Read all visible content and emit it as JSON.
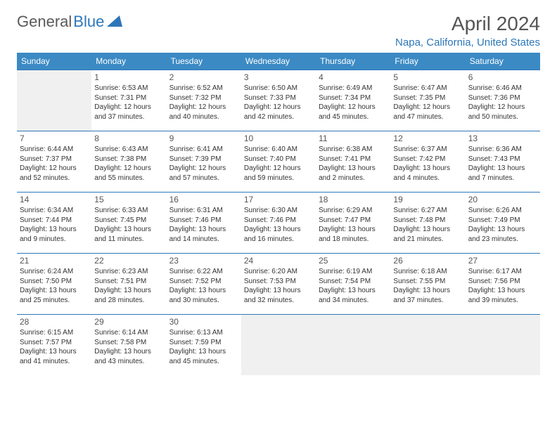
{
  "logo": {
    "text1": "General",
    "text2": "Blue"
  },
  "title": "April 2024",
  "location": "Napa, California, United States",
  "days_of_week": [
    "Sunday",
    "Monday",
    "Tuesday",
    "Wednesday",
    "Thursday",
    "Friday",
    "Saturday"
  ],
  "colors": {
    "header_bg": "#3b8ac4",
    "accent": "#2d77b8",
    "text": "#333333",
    "blank_bg": "#f0f0f0"
  },
  "weeks": [
    [
      {
        "blank": true
      },
      {
        "day": "1",
        "sunrise": "Sunrise: 6:53 AM",
        "sunset": "Sunset: 7:31 PM",
        "dl1": "Daylight: 12 hours",
        "dl2": "and 37 minutes."
      },
      {
        "day": "2",
        "sunrise": "Sunrise: 6:52 AM",
        "sunset": "Sunset: 7:32 PM",
        "dl1": "Daylight: 12 hours",
        "dl2": "and 40 minutes."
      },
      {
        "day": "3",
        "sunrise": "Sunrise: 6:50 AM",
        "sunset": "Sunset: 7:33 PM",
        "dl1": "Daylight: 12 hours",
        "dl2": "and 42 minutes."
      },
      {
        "day": "4",
        "sunrise": "Sunrise: 6:49 AM",
        "sunset": "Sunset: 7:34 PM",
        "dl1": "Daylight: 12 hours",
        "dl2": "and 45 minutes."
      },
      {
        "day": "5",
        "sunrise": "Sunrise: 6:47 AM",
        "sunset": "Sunset: 7:35 PM",
        "dl1": "Daylight: 12 hours",
        "dl2": "and 47 minutes."
      },
      {
        "day": "6",
        "sunrise": "Sunrise: 6:46 AM",
        "sunset": "Sunset: 7:36 PM",
        "dl1": "Daylight: 12 hours",
        "dl2": "and 50 minutes."
      }
    ],
    [
      {
        "day": "7",
        "sunrise": "Sunrise: 6:44 AM",
        "sunset": "Sunset: 7:37 PM",
        "dl1": "Daylight: 12 hours",
        "dl2": "and 52 minutes."
      },
      {
        "day": "8",
        "sunrise": "Sunrise: 6:43 AM",
        "sunset": "Sunset: 7:38 PM",
        "dl1": "Daylight: 12 hours",
        "dl2": "and 55 minutes."
      },
      {
        "day": "9",
        "sunrise": "Sunrise: 6:41 AM",
        "sunset": "Sunset: 7:39 PM",
        "dl1": "Daylight: 12 hours",
        "dl2": "and 57 minutes."
      },
      {
        "day": "10",
        "sunrise": "Sunrise: 6:40 AM",
        "sunset": "Sunset: 7:40 PM",
        "dl1": "Daylight: 12 hours",
        "dl2": "and 59 minutes."
      },
      {
        "day": "11",
        "sunrise": "Sunrise: 6:38 AM",
        "sunset": "Sunset: 7:41 PM",
        "dl1": "Daylight: 13 hours",
        "dl2": "and 2 minutes."
      },
      {
        "day": "12",
        "sunrise": "Sunrise: 6:37 AM",
        "sunset": "Sunset: 7:42 PM",
        "dl1": "Daylight: 13 hours",
        "dl2": "and 4 minutes."
      },
      {
        "day": "13",
        "sunrise": "Sunrise: 6:36 AM",
        "sunset": "Sunset: 7:43 PM",
        "dl1": "Daylight: 13 hours",
        "dl2": "and 7 minutes."
      }
    ],
    [
      {
        "day": "14",
        "sunrise": "Sunrise: 6:34 AM",
        "sunset": "Sunset: 7:44 PM",
        "dl1": "Daylight: 13 hours",
        "dl2": "and 9 minutes."
      },
      {
        "day": "15",
        "sunrise": "Sunrise: 6:33 AM",
        "sunset": "Sunset: 7:45 PM",
        "dl1": "Daylight: 13 hours",
        "dl2": "and 11 minutes."
      },
      {
        "day": "16",
        "sunrise": "Sunrise: 6:31 AM",
        "sunset": "Sunset: 7:46 PM",
        "dl1": "Daylight: 13 hours",
        "dl2": "and 14 minutes."
      },
      {
        "day": "17",
        "sunrise": "Sunrise: 6:30 AM",
        "sunset": "Sunset: 7:46 PM",
        "dl1": "Daylight: 13 hours",
        "dl2": "and 16 minutes."
      },
      {
        "day": "18",
        "sunrise": "Sunrise: 6:29 AM",
        "sunset": "Sunset: 7:47 PM",
        "dl1": "Daylight: 13 hours",
        "dl2": "and 18 minutes."
      },
      {
        "day": "19",
        "sunrise": "Sunrise: 6:27 AM",
        "sunset": "Sunset: 7:48 PM",
        "dl1": "Daylight: 13 hours",
        "dl2": "and 21 minutes."
      },
      {
        "day": "20",
        "sunrise": "Sunrise: 6:26 AM",
        "sunset": "Sunset: 7:49 PM",
        "dl1": "Daylight: 13 hours",
        "dl2": "and 23 minutes."
      }
    ],
    [
      {
        "day": "21",
        "sunrise": "Sunrise: 6:24 AM",
        "sunset": "Sunset: 7:50 PM",
        "dl1": "Daylight: 13 hours",
        "dl2": "and 25 minutes."
      },
      {
        "day": "22",
        "sunrise": "Sunrise: 6:23 AM",
        "sunset": "Sunset: 7:51 PM",
        "dl1": "Daylight: 13 hours",
        "dl2": "and 28 minutes."
      },
      {
        "day": "23",
        "sunrise": "Sunrise: 6:22 AM",
        "sunset": "Sunset: 7:52 PM",
        "dl1": "Daylight: 13 hours",
        "dl2": "and 30 minutes."
      },
      {
        "day": "24",
        "sunrise": "Sunrise: 6:20 AM",
        "sunset": "Sunset: 7:53 PM",
        "dl1": "Daylight: 13 hours",
        "dl2": "and 32 minutes."
      },
      {
        "day": "25",
        "sunrise": "Sunrise: 6:19 AM",
        "sunset": "Sunset: 7:54 PM",
        "dl1": "Daylight: 13 hours",
        "dl2": "and 34 minutes."
      },
      {
        "day": "26",
        "sunrise": "Sunrise: 6:18 AM",
        "sunset": "Sunset: 7:55 PM",
        "dl1": "Daylight: 13 hours",
        "dl2": "and 37 minutes."
      },
      {
        "day": "27",
        "sunrise": "Sunrise: 6:17 AM",
        "sunset": "Sunset: 7:56 PM",
        "dl1": "Daylight: 13 hours",
        "dl2": "and 39 minutes."
      }
    ],
    [
      {
        "day": "28",
        "sunrise": "Sunrise: 6:15 AM",
        "sunset": "Sunset: 7:57 PM",
        "dl1": "Daylight: 13 hours",
        "dl2": "and 41 minutes."
      },
      {
        "day": "29",
        "sunrise": "Sunrise: 6:14 AM",
        "sunset": "Sunset: 7:58 PM",
        "dl1": "Daylight: 13 hours",
        "dl2": "and 43 minutes."
      },
      {
        "day": "30",
        "sunrise": "Sunrise: 6:13 AM",
        "sunset": "Sunset: 7:59 PM",
        "dl1": "Daylight: 13 hours",
        "dl2": "and 45 minutes."
      },
      {
        "blank": true
      },
      {
        "blank": true
      },
      {
        "blank": true
      },
      {
        "blank": true
      }
    ]
  ]
}
